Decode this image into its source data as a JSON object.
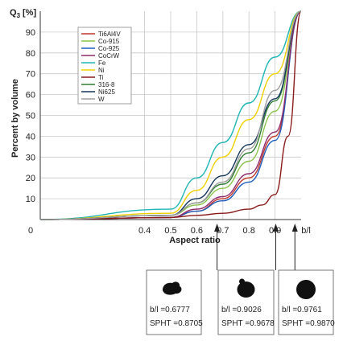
{
  "chart_data": {
    "type": "line",
    "ylabel": "Q3 [%]",
    "ylabel_main": "Q",
    "ylabel_sub": "3",
    "ylabel_unit": "[%]",
    "ylabel_side": "Percent by volume",
    "xlabel": "Aspect ratio",
    "x_unit_label": "b/l",
    "xlim": [
      0.0,
      1.0
    ],
    "ylim": [
      0,
      100
    ],
    "x_tick_labels": [
      "0",
      "0.4",
      "0.5",
      "0.6",
      "0.7",
      "0.8",
      "0.9"
    ],
    "y_tick_labels": [
      "10",
      "20",
      "30",
      "40",
      "50",
      "60",
      "70",
      "80",
      "90"
    ],
    "grid": true,
    "legend_position": "top-left",
    "series": [
      {
        "name": "Ti6Al4V",
        "color": "#c0392b",
        "x": [
          0.0,
          0.5,
          0.6,
          0.7,
          0.8,
          0.9,
          1.0
        ],
        "y": [
          0,
          1,
          4,
          10,
          20,
          40,
          100
        ]
      },
      {
        "name": "Co-915",
        "color": "#8bc34a",
        "x": [
          0.0,
          0.5,
          0.6,
          0.7,
          0.8,
          0.9,
          1.0
        ],
        "y": [
          0,
          2,
          7,
          15,
          28,
          52,
          100
        ]
      },
      {
        "name": "Co-925",
        "color": "#1f5fbf",
        "x": [
          0.0,
          0.5,
          0.6,
          0.7,
          0.8,
          0.9,
          1.0
        ],
        "y": [
          0,
          1,
          4,
          9,
          18,
          38,
          100
        ]
      },
      {
        "name": "CoCrW",
        "color": "#8e2a6b",
        "x": [
          0.0,
          0.5,
          0.6,
          0.7,
          0.8,
          0.9,
          1.0
        ],
        "y": [
          0,
          1,
          5,
          11,
          22,
          42,
          100
        ]
      },
      {
        "name": "Fe",
        "color": "#1fb5b5",
        "x": [
          0.0,
          0.5,
          0.6,
          0.7,
          0.8,
          0.9,
          1.0
        ],
        "y": [
          0,
          5,
          20,
          37,
          56,
          78,
          100
        ]
      },
      {
        "name": "Ni",
        "color": "#f0d000",
        "x": [
          0.0,
          0.5,
          0.6,
          0.7,
          0.8,
          0.9,
          1.0
        ],
        "y": [
          0,
          3,
          14,
          30,
          48,
          70,
          100
        ]
      },
      {
        "name": "Ti",
        "color": "#8b1a1a",
        "x": [
          0.0,
          0.5,
          0.6,
          0.7,
          0.8,
          0.85,
          0.9,
          0.95,
          1.0
        ],
        "y": [
          0,
          1,
          2,
          3,
          5,
          7,
          12,
          40,
          100
        ]
      },
      {
        "name": "316-8",
        "color": "#2e7d32",
        "x": [
          0.0,
          0.5,
          0.6,
          0.7,
          0.8,
          0.9,
          1.0
        ],
        "y": [
          0,
          2,
          8,
          17,
          32,
          57,
          100
        ]
      },
      {
        "name": "Ni625",
        "color": "#12355b",
        "x": [
          0.0,
          0.5,
          0.6,
          0.7,
          0.8,
          0.9,
          1.0
        ],
        "y": [
          0,
          2,
          10,
          21,
          36,
          58,
          100
        ]
      },
      {
        "name": "W",
        "color": "#9e9e9e",
        "x": [
          0.0,
          0.5,
          0.6,
          0.7,
          0.8,
          0.9,
          1.0
        ],
        "y": [
          0,
          2,
          8,
          18,
          34,
          62,
          100
        ]
      }
    ],
    "annotations": [
      {
        "x": 0.6777,
        "bl_text": "b/l =0.6777",
        "spht_text": "SPHT =0.8705",
        "shape": "irregular"
      },
      {
        "x": 0.9026,
        "bl_text": "b/l =0.9026",
        "spht_text": "SPHT =0.9678",
        "shape": "near-round"
      },
      {
        "x": 0.9761,
        "bl_text": "b/l =0.9761",
        "spht_text": "SPHT =0.9870",
        "shape": "round"
      }
    ]
  }
}
